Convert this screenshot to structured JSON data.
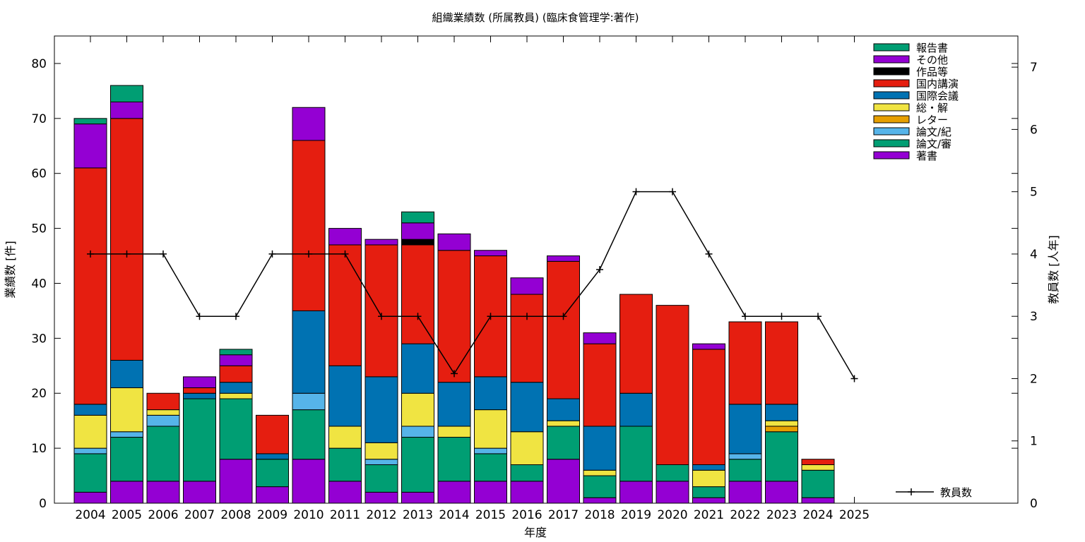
{
  "chart_data": {
    "type": "bar",
    "title": "組織業績数 (所属教員) (臨床食管理学:著作)",
    "xlabel": "年度",
    "ylabel": "業績数 [件]",
    "y2label": "教員数 [人年]",
    "ylim": [
      0,
      85
    ],
    "y2lim": [
      0,
      7.5
    ],
    "yticks": [
      "0",
      "10",
      "20",
      "30",
      "40",
      "50",
      "60",
      "70",
      "80"
    ],
    "y2ticks": [
      "0",
      "1",
      "2",
      "3",
      "4",
      "5",
      "6",
      "7"
    ],
    "categories": [
      "2004",
      "2005",
      "2006",
      "2007",
      "2008",
      "2009",
      "2010",
      "2011",
      "2012",
      "2013",
      "2014",
      "2015",
      "2016",
      "2017",
      "2018",
      "2019",
      "2020",
      "2021",
      "2022",
      "2023",
      "2024",
      "2025"
    ],
    "legend_position": "top-right",
    "grid": false,
    "stack_series": [
      {
        "name": "著書",
        "color": "#9400d3",
        "values": [
          2,
          4,
          4,
          4,
          8,
          3,
          8,
          4,
          2,
          2,
          4,
          4,
          4,
          8,
          1,
          4,
          4,
          1,
          4,
          4,
          1,
          0
        ]
      },
      {
        "name": "論文/審",
        "color": "#009e73",
        "values": [
          7,
          8,
          10,
          15,
          11,
          5,
          9,
          6,
          5,
          10,
          8,
          5,
          3,
          6,
          4,
          10,
          3,
          2,
          4,
          9,
          5,
          0
        ]
      },
      {
        "name": "論文/紀",
        "color": "#56b4e9",
        "values": [
          1,
          1,
          2,
          0,
          0,
          0,
          3,
          0,
          1,
          2,
          0,
          1,
          0,
          0,
          0,
          0,
          0,
          0,
          1,
          0,
          0,
          0
        ]
      },
      {
        "name": "レター",
        "color": "#e69f00",
        "values": [
          0,
          0,
          0,
          0,
          0,
          0,
          0,
          0,
          0,
          0,
          0,
          0,
          0,
          0,
          0,
          0,
          0,
          0,
          0,
          1,
          0,
          0
        ]
      },
      {
        "name": "総・解",
        "color": "#f0e442",
        "values": [
          6,
          8,
          1,
          0,
          1,
          0,
          0,
          4,
          3,
          6,
          2,
          7,
          6,
          1,
          1,
          0,
          0,
          3,
          0,
          1,
          1,
          0
        ]
      },
      {
        "name": "国際会議",
        "color": "#0072b2",
        "values": [
          2,
          5,
          0,
          1,
          2,
          1,
          15,
          11,
          12,
          9,
          8,
          6,
          9,
          4,
          8,
          6,
          0,
          1,
          9,
          3,
          0,
          0
        ]
      },
      {
        "name": "国内講演",
        "color": "#e51e10",
        "values": [
          43,
          44,
          3,
          1,
          3,
          7,
          31,
          22,
          24,
          18,
          24,
          22,
          16,
          25,
          15,
          18,
          29,
          21,
          15,
          15,
          1,
          0
        ]
      },
      {
        "name": "作品等",
        "color": "#000000",
        "values": [
          0,
          0,
          0,
          0,
          0,
          0,
          0,
          0,
          0,
          1,
          0,
          0,
          0,
          0,
          0,
          0,
          0,
          0,
          0,
          0,
          0,
          0
        ]
      },
      {
        "name": "その他",
        "color": "#9400d3",
        "values": [
          8,
          3,
          0,
          2,
          2,
          0,
          6,
          3,
          1,
          3,
          3,
          1,
          3,
          1,
          2,
          0,
          0,
          1,
          0,
          0,
          0,
          0
        ]
      },
      {
        "name": "報告書",
        "color": "#009e73",
        "values": [
          1,
          3,
          0,
          0,
          1,
          0,
          0,
          0,
          0,
          2,
          0,
          0,
          0,
          0,
          0,
          0,
          0,
          0,
          0,
          0,
          0,
          0
        ]
      }
    ],
    "line_series": {
      "name": "教員数",
      "color": "#000000",
      "x": [
        "2004",
        "2005",
        "2006",
        "2007",
        "2008",
        "2009",
        "2010",
        "2011",
        "2012",
        "2013",
        "2014",
        "2015",
        "2016",
        "2017",
        "2018",
        "2019",
        "2020",
        "2021",
        "2022",
        "2023",
        "2024",
        "2025"
      ],
      "values": [
        4,
        4,
        4,
        3,
        3,
        4,
        4,
        4,
        3,
        3,
        2.08,
        3,
        3,
        3,
        3.75,
        5,
        5,
        4,
        3,
        3,
        3,
        2
      ]
    }
  }
}
